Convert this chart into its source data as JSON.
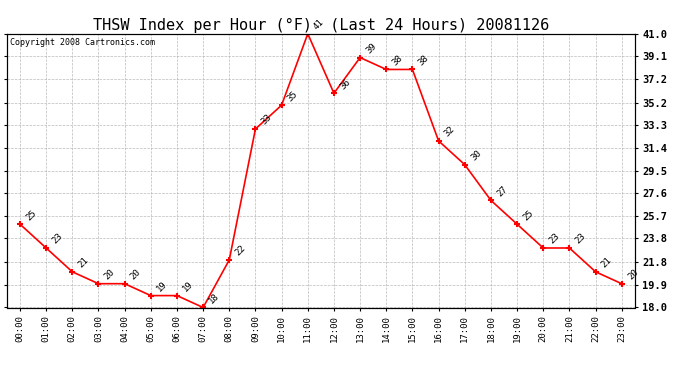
{
  "title": "THSW Index per Hour (°F)  (Last 24 Hours) 20081126",
  "copyright": "Copyright 2008 Cartronics.com",
  "hours": [
    "00:00",
    "01:00",
    "02:00",
    "03:00",
    "04:00",
    "05:00",
    "06:00",
    "07:00",
    "08:00",
    "09:00",
    "10:00",
    "11:00",
    "12:00",
    "13:00",
    "14:00",
    "15:00",
    "16:00",
    "17:00",
    "18:00",
    "19:00",
    "20:00",
    "21:00",
    "22:00",
    "23:00"
  ],
  "values": [
    25,
    23,
    21,
    20,
    20,
    19,
    19,
    18,
    22,
    33,
    35,
    41,
    36,
    39,
    38,
    38,
    32,
    30,
    27,
    25,
    23,
    23,
    21,
    20
  ],
  "ylim": [
    18.0,
    41.0
  ],
  "yticks": [
    18.0,
    19.9,
    21.8,
    23.8,
    25.7,
    27.6,
    29.5,
    31.4,
    33.3,
    35.2,
    37.2,
    39.1,
    41.0
  ],
  "line_color": "red",
  "marker_color": "red",
  "background_color": "white",
  "grid_color": "#aaaaaa",
  "title_fontsize": 11,
  "annotation_fontsize": 6.5,
  "copyright_fontsize": 6,
  "ytick_fontsize": 7.5,
  "xtick_fontsize": 6.5
}
